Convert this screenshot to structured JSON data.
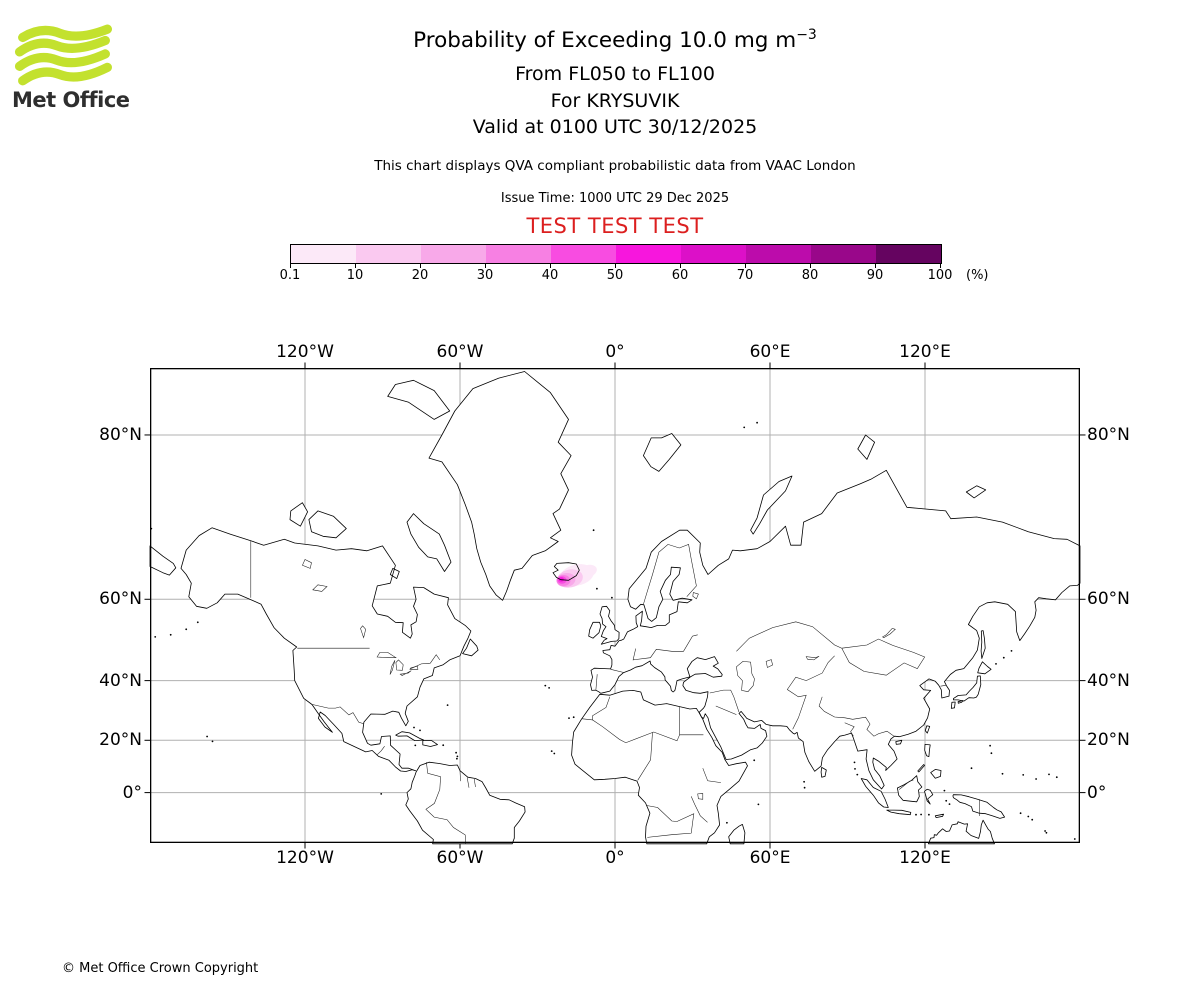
{
  "header": {
    "logo_text": "Met Office",
    "title_main": "Probability of Exceeding 10.0 mg m",
    "title_exponent": "−3",
    "subtitle_flight_levels": "From FL050 to FL100",
    "subtitle_volcano": "For KRYSUVIK",
    "subtitle_valid_time": "Valid at 0100 UTC 30/12/2025",
    "note": "This chart displays QVA compliant probabilistic data from VAAC London",
    "issue_time": "Issue Time: 1000 UTC 29 Dec 2025",
    "test_banner": "TEST TEST TEST",
    "test_banner_color": "#dc1f1f",
    "logo_color": "#c3e12e"
  },
  "colorbar": {
    "tick_labels": [
      "0.1",
      "10",
      "20",
      "30",
      "40",
      "50",
      "60",
      "70",
      "80",
      "90",
      "100"
    ],
    "unit_label": "(%)",
    "segment_colors": [
      "#fce9f8",
      "#fac9f0",
      "#f8a9e9",
      "#f780e3",
      "#f84ce1",
      "#f716dd",
      "#dc10c8",
      "#bc0cab",
      "#99078a",
      "#650460"
    ]
  },
  "map": {
    "lon_ticks": [
      {
        "value": -120,
        "label": "120°W"
      },
      {
        "value": -60,
        "label": "60°W"
      },
      {
        "value": 0,
        "label": "0°"
      },
      {
        "value": 60,
        "label": "60°E"
      },
      {
        "value": 120,
        "label": "120°E"
      }
    ],
    "lat_ticks": [
      {
        "value": 80,
        "label": "80°N"
      },
      {
        "value": 60,
        "label": "60°N"
      },
      {
        "value": 40,
        "label": "40°N"
      },
      {
        "value": 20,
        "label": "20°N"
      },
      {
        "value": 0,
        "label": "0°"
      }
    ],
    "grid_color": "#b0b0b0",
    "coast_color": "#000000"
  },
  "footer": {
    "copyright": "© Met Office Crown Copyright"
  },
  "chart_data": {
    "type": "map",
    "title": "Probability of Exceeding 10.0 mg m−3",
    "layer": "FL050 to FL100",
    "volcano": "KRYSUVIK",
    "valid_time": "0100 UTC 30/12/2025",
    "issue_time": "1000 UTC 29 Dec 2025",
    "source": "VAAC London",
    "colorbar_percent_ticks": [
      0.1,
      10,
      20,
      30,
      40,
      50,
      60,
      70,
      80,
      90,
      100
    ],
    "map_extent": {
      "projection": "Mercator",
      "lon_min": -180,
      "lon_max": 180,
      "lat_min": -19.3,
      "lat_max": 83.6
    },
    "ash_cloud": {
      "location": "over and east of Iceland",
      "approx_center_lon": -19.5,
      "approx_center_lat": 63.8,
      "max_probability_band_percent": "40–60"
    }
  }
}
